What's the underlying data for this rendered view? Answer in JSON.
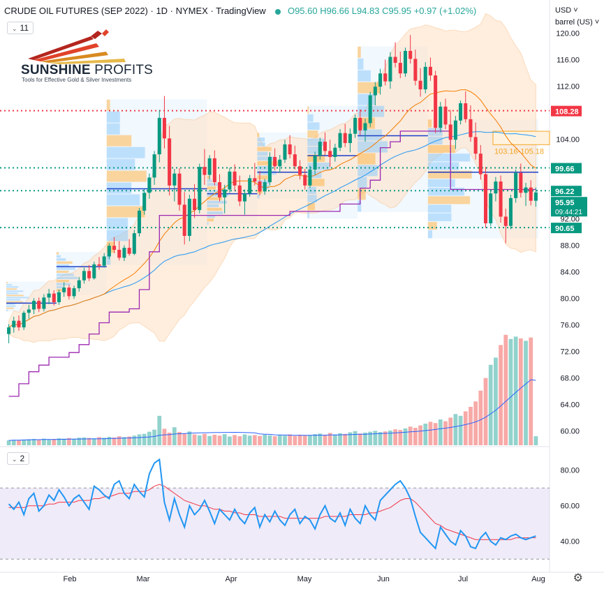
{
  "header": {
    "title": "CRUDE OIL FUTURES (SEP 2022) · 1D · NYMEX · TradingView",
    "ohlc": "O95.60 H96.66 L94.83 C95.95 +0.97 (+1.02%)",
    "status_color": "#26a69a"
  },
  "toolbar": {
    "main_indicators_count": "11",
    "rsi_indicators_count": "2",
    "currency_menu": "USD",
    "unit_menu": "barrel (US)",
    "settings_icon": "gear-icon"
  },
  "logo": {
    "name_bold": "SUNSHINE",
    "name_light": " PROFITS",
    "tagline": "Tools for Effective Gold & Silver Investments"
  },
  "chart_data": [
    {
      "type": "candlestick",
      "y_axis_ticks": [
        "120.00",
        "116.00",
        "112.00",
        "108.00",
        "104.00",
        "100.00",
        "96.00",
        "92.00",
        "88.00",
        "84.00",
        "80.00",
        "76.00",
        "72.00",
        "68.00",
        "64.00",
        "60.00"
      ],
      "ylim": [
        58.5,
        121.5
      ],
      "x_ticks": [
        "Feb",
        "Mar",
        "Apr",
        "May",
        "Jun",
        "Jul",
        "Aug"
      ],
      "horizontal_levels": [
        {
          "label": "108.28",
          "value": 108.28,
          "color": "#f23645",
          "style": "dotted"
        },
        {
          "label": "99.66",
          "value": 99.66,
          "color": "#089981",
          "style": "dotted"
        },
        {
          "label": "96.22",
          "value": 96.22,
          "color": "#089981",
          "style": "dotted"
        },
        {
          "label": "90.65",
          "value": 90.65,
          "color": "#089981",
          "style": "dotted"
        }
      ],
      "last_price": {
        "label": "95.95",
        "countdown": "09:44:21",
        "color": "#089981"
      },
      "zone": {
        "label": "103.16-105.18",
        "from": 103.16,
        "to": 105.18,
        "color": "#f5a623"
      },
      "candles": [
        [
          74.6,
          76.1,
          73.2,
          75.6
        ],
        [
          75.6,
          77.2,
          74.8,
          76.6
        ],
        [
          76.6,
          77.4,
          75.1,
          75.6
        ],
        [
          75.6,
          78.1,
          75.2,
          77.8
        ],
        [
          77.8,
          79.0,
          76.9,
          78.3
        ],
        [
          78.3,
          80.0,
          77.6,
          79.6
        ],
        [
          79.6,
          80.1,
          77.9,
          78.4
        ],
        [
          78.4,
          80.6,
          78.0,
          80.1
        ],
        [
          80.1,
          81.4,
          79.1,
          80.7
        ],
        [
          80.7,
          81.2,
          78.9,
          79.4
        ],
        [
          79.4,
          81.3,
          79.0,
          80.9
        ],
        [
          80.9,
          82.4,
          80.2,
          81.6
        ],
        [
          81.6,
          82.0,
          79.8,
          80.3
        ],
        [
          80.3,
          81.9,
          79.9,
          81.5
        ],
        [
          81.5,
          83.2,
          81.0,
          82.7
        ],
        [
          82.7,
          84.6,
          82.2,
          84.1
        ],
        [
          84.1,
          85.0,
          82.6,
          83.0
        ],
        [
          83.0,
          85.5,
          82.8,
          85.1
        ],
        [
          85.1,
          86.2,
          84.3,
          84.9
        ],
        [
          84.9,
          86.8,
          84.6,
          86.3
        ],
        [
          86.3,
          88.3,
          85.9,
          87.9
        ],
        [
          87.9,
          89.2,
          86.8,
          87.3
        ],
        [
          87.3,
          88.6,
          85.7,
          86.1
        ],
        [
          86.1,
          88.0,
          85.6,
          87.6
        ],
        [
          87.6,
          88.9,
          86.4,
          86.7
        ],
        [
          86.7,
          90.3,
          86.5,
          89.8
        ],
        [
          89.8,
          93.6,
          89.3,
          93.2
        ],
        [
          93.2,
          96.5,
          92.6,
          95.9
        ],
        [
          95.9,
          98.8,
          95.0,
          98.2
        ],
        [
          98.2,
          102.2,
          97.1,
          101.7
        ],
        [
          101.7,
          108.4,
          100.5,
          107.2
        ],
        [
          107.2,
          110.5,
          102.6,
          104.1
        ],
        [
          104.1,
          106.0,
          95.5,
          97.0
        ],
        [
          97.0,
          99.5,
          94.6,
          98.8
        ],
        [
          98.8,
          99.6,
          93.2,
          94.1
        ],
        [
          94.1,
          96.0,
          88.1,
          89.4
        ],
        [
          89.4,
          95.6,
          88.6,
          95.0
        ],
        [
          95.0,
          97.2,
          92.1,
          93.3
        ],
        [
          93.3,
          100.3,
          92.8,
          99.8
        ],
        [
          99.8,
          102.5,
          97.1,
          98.6
        ],
        [
          98.6,
          101.6,
          97.9,
          101.1
        ],
        [
          101.1,
          102.3,
          97.0,
          97.5
        ],
        [
          97.5,
          98.7,
          94.6,
          95.2
        ],
        [
          95.2,
          97.1,
          92.8,
          96.4
        ],
        [
          96.4,
          99.7,
          95.9,
          99.1
        ],
        [
          99.1,
          100.2,
          96.2,
          97.0
        ],
        [
          97.0,
          98.5,
          93.9,
          94.6
        ],
        [
          94.6,
          96.4,
          92.6,
          95.8
        ],
        [
          95.8,
          98.6,
          95.3,
          98.1
        ],
        [
          98.1,
          100.4,
          97.0,
          97.6
        ],
        [
          97.6,
          99.2,
          95.5,
          96.1
        ],
        [
          96.1,
          98.0,
          95.6,
          97.5
        ],
        [
          97.5,
          102.0,
          97.0,
          101.3
        ],
        [
          101.3,
          102.6,
          99.3,
          99.9
        ],
        [
          99.9,
          101.6,
          98.9,
          100.9
        ],
        [
          100.9,
          103.9,
          100.4,
          103.2
        ],
        [
          103.2,
          104.6,
          101.1,
          101.7
        ],
        [
          101.7,
          103.0,
          99.4,
          99.9
        ],
        [
          99.9,
          100.8,
          97.9,
          98.6
        ],
        [
          98.6,
          99.5,
          96.4,
          97.0
        ],
        [
          97.0,
          100.0,
          96.6,
          99.4
        ],
        [
          99.4,
          102.1,
          98.6,
          101.5
        ],
        [
          101.5,
          104.2,
          100.9,
          103.6
        ],
        [
          103.6,
          105.0,
          101.6,
          102.2
        ],
        [
          102.2,
          103.9,
          99.8,
          101.3
        ],
        [
          101.3,
          103.3,
          100.6,
          102.7
        ],
        [
          102.7,
          105.5,
          102.2,
          104.9
        ],
        [
          104.9,
          106.3,
          102.8,
          103.4
        ],
        [
          103.4,
          105.6,
          102.0,
          104.8
        ],
        [
          104.8,
          107.7,
          104.2,
          107.2
        ],
        [
          107.2,
          108.5,
          104.6,
          105.3
        ],
        [
          105.3,
          107.1,
          103.6,
          106.4
        ],
        [
          106.4,
          111.1,
          105.8,
          110.6
        ],
        [
          110.6,
          112.6,
          109.1,
          111.9
        ],
        [
          111.9,
          114.6,
          110.7,
          113.9
        ],
        [
          113.9,
          116.0,
          112.1,
          112.7
        ],
        [
          112.7,
          117.1,
          111.6,
          116.4
        ],
        [
          116.4,
          118.6,
          114.8,
          115.5
        ],
        [
          115.5,
          117.2,
          113.2,
          113.9
        ],
        [
          113.9,
          117.8,
          113.4,
          117.3
        ],
        [
          117.3,
          119.7,
          115.4,
          116.1
        ],
        [
          116.1,
          117.5,
          112.1,
          112.8
        ],
        [
          112.8,
          114.7,
          110.4,
          111.5
        ],
        [
          111.5,
          115.6,
          110.9,
          114.9
        ],
        [
          114.9,
          116.3,
          112.8,
          113.6
        ],
        [
          113.6,
          114.3,
          104.9,
          105.7
        ],
        [
          105.7,
          109.6,
          105.0,
          108.9
        ],
        [
          108.9,
          110.1,
          105.5,
          106.2
        ],
        [
          106.2,
          108.4,
          102.8,
          103.9
        ],
        [
          103.9,
          107.5,
          102.5,
          106.8
        ],
        [
          106.8,
          109.8,
          106.2,
          109.4
        ],
        [
          109.4,
          111.2,
          106.5,
          107.0
        ],
        [
          107.0,
          109.1,
          103.6,
          104.3
        ],
        [
          104.3,
          106.5,
          100.9,
          101.8
        ],
        [
          101.8,
          103.1,
          97.9,
          98.7
        ],
        [
          98.7,
          99.8,
          90.6,
          91.3
        ],
        [
          91.3,
          96.4,
          90.9,
          95.8
        ],
        [
          95.8,
          98.3,
          94.6,
          97.6
        ],
        [
          97.6,
          98.5,
          91.4,
          92.3
        ],
        [
          92.3,
          93.5,
          88.3,
          90.9
        ],
        [
          90.9,
          95.6,
          90.4,
          95.1
        ],
        [
          95.1,
          99.4,
          94.4,
          98.9
        ],
        [
          98.9,
          100.3,
          95.2,
          95.9
        ],
        [
          95.9,
          97.4,
          93.9,
          96.7
        ],
        [
          96.7,
          97.8,
          94.0,
          94.7
        ],
        [
          94.7,
          96.7,
          93.8,
          95.95
        ]
      ],
      "volume": [
        1.6,
        1.8,
        1.7,
        1.9,
        2.0,
        2.1,
        1.9,
        2.2,
        2.0,
        2.1,
        2.3,
        2.2,
        2.4,
        2.2,
        2.5,
        2.6,
        2.4,
        2.3,
        2.7,
        2.5,
        2.8,
        2.6,
        3.0,
        2.7,
        2.9,
        3.2,
        3.6,
        3.8,
        4.5,
        5.2,
        9.8,
        5.5,
        4.2,
        6.0,
        4.4,
        3.9,
        4.6,
        3.6,
        3.3,
        3.8,
        3.1,
        3.5,
        3.2,
        3.7,
        2.9,
        3.4,
        3.0,
        3.6,
        3.2,
        3.4,
        3.1,
        3.5,
        3.3,
        3.0,
        3.4,
        3.2,
        3.6,
        3.1,
        3.5,
        3.3,
        3.4,
        3.7,
        3.9,
        3.5,
        4.1,
        3.6,
        4.0,
        3.8,
        4.3,
        4.7,
        3.9,
        4.2,
        4.5,
        4.8,
        4.4,
        4.6,
        4.9,
        5.3,
        5.1,
        5.6,
        6.2,
        5.8,
        6.6,
        7.2,
        7.8,
        7.4,
        8.6,
        8.0,
        9.2,
        10.4,
        9.8,
        11.3,
        12.8,
        14.6,
        18.2,
        22.4,
        26.8,
        29.2,
        33.4,
        36.8,
        35.4,
        36.2,
        35.6,
        34.8,
        35.9,
        3.0
      ],
      "series": [
        {
          "name": "MA20",
          "color": "#f57c00"
        },
        {
          "name": "MA50",
          "color": "#2196f3"
        },
        {
          "name": "Trailing stop",
          "color": "#9c27b0"
        }
      ]
    },
    {
      "type": "line",
      "name": "RSI",
      "y_axis_ticks": [
        "80.00",
        "60.00",
        "40.00"
      ],
      "ylim": [
        28,
        88
      ],
      "band": [
        30,
        70
      ],
      "rsi": [
        61,
        58,
        62,
        55,
        64,
        67,
        57,
        60,
        66,
        63,
        69,
        65,
        60,
        64,
        66,
        62,
        58,
        71,
        69,
        66,
        64,
        72,
        74,
        67,
        64,
        72,
        68,
        65,
        78,
        84,
        86,
        62,
        52,
        64,
        55,
        48,
        60,
        55,
        58,
        63,
        57,
        50,
        58,
        55,
        52,
        58,
        53,
        50,
        56,
        59,
        48,
        55,
        51,
        57,
        52,
        49,
        55,
        58,
        50,
        54,
        52,
        47,
        55,
        60,
        53,
        51,
        56,
        49,
        58,
        53,
        50,
        60,
        55,
        52,
        63,
        66,
        69,
        72,
        74,
        70,
        64,
        54,
        45,
        42,
        39,
        36,
        48,
        44,
        40,
        38,
        46,
        43,
        37,
        36,
        42,
        45,
        40,
        38,
        42,
        41,
        43,
        44,
        42,
        41,
        42,
        43
      ],
      "rsi_ma": [
        59,
        59,
        59,
        59,
        60,
        60,
        60,
        60,
        61,
        61,
        62,
        62,
        62,
        62,
        63,
        63,
        63,
        64,
        64,
        65,
        65,
        66,
        67,
        67,
        67,
        68,
        68,
        68,
        69,
        71,
        72,
        71,
        69,
        67,
        65,
        63,
        62,
        61,
        60,
        60,
        59,
        58,
        58,
        57,
        57,
        56,
        56,
        55,
        55,
        55,
        54,
        54,
        54,
        54,
        54,
        53,
        53,
        53,
        53,
        53,
        53,
        53,
        53,
        54,
        54,
        54,
        54,
        54,
        55,
        55,
        55,
        55,
        56,
        56,
        57,
        58,
        59,
        61,
        63,
        64,
        64,
        62,
        59,
        56,
        53,
        50,
        49,
        47,
        46,
        45,
        44,
        43,
        42,
        41,
        41,
        41,
        41,
        41,
        41,
        41,
        41,
        42,
        42,
        42,
        42,
        42
      ]
    }
  ]
}
